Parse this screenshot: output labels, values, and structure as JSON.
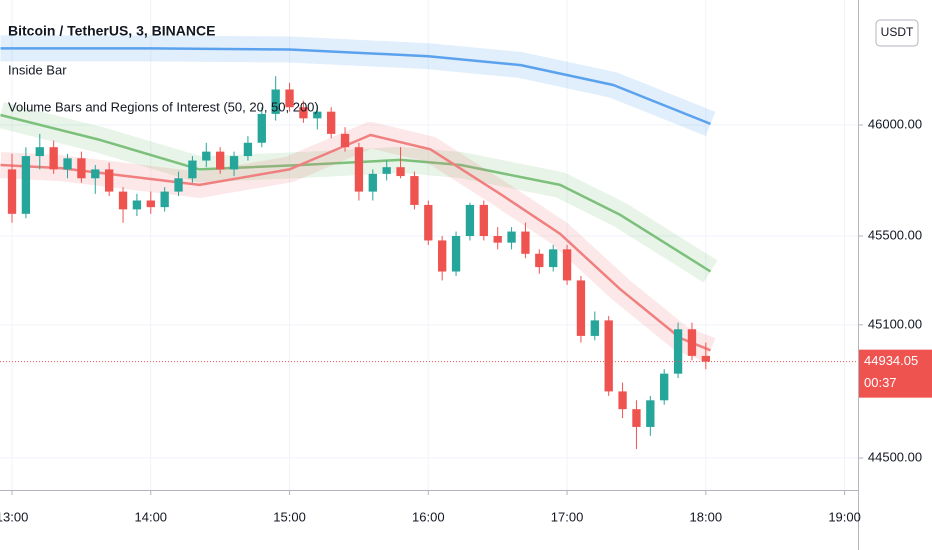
{
  "chart_data": {
    "type": "candlestick",
    "title": "Bitcoin / TetherUS, 3, BINANCE",
    "indicators": [
      "Inside Bar",
      "Volume Bars and Regions of Interest (50, 20, 50, 200)"
    ],
    "currency": "USDT",
    "up_color": "#26a69a",
    "down_color": "#ef5350",
    "grid": true,
    "xlim": [
      774.8,
      1145.8
    ],
    "ylim": [
      44356,
      46563
    ],
    "xticks": [
      {
        "value": 780,
        "label": "13:00"
      },
      {
        "value": 840,
        "label": "14:00"
      },
      {
        "value": 900,
        "label": "15:00"
      },
      {
        "value": 960,
        "label": "16:00"
      },
      {
        "value": 1020,
        "label": "17:00"
      },
      {
        "value": 1080,
        "label": "18:00"
      },
      {
        "value": 1140,
        "label": "19:00"
      }
    ],
    "yticks": [
      {
        "value": 44500,
        "label": "44500.00"
      },
      {
        "value": 45100,
        "label": "45100.00"
      },
      {
        "value": 45500,
        "label": "45500.00"
      },
      {
        "value": 46000,
        "label": "46000.00"
      }
    ],
    "x": [
      780,
      786,
      792,
      798,
      804,
      810,
      816,
      822,
      828,
      834,
      840,
      846,
      852,
      858,
      864,
      870,
      876,
      882,
      888,
      894,
      900,
      906,
      912,
      918,
      924,
      930,
      936,
      942,
      948,
      954,
      960,
      966,
      972,
      978,
      984,
      990,
      996,
      1002,
      1008,
      1014,
      1020,
      1026,
      1032,
      1038,
      1044,
      1050,
      1056,
      1062,
      1068,
      1074,
      1080
    ],
    "open": [
      45800,
      45600,
      45860,
      45900,
      45800,
      45850,
      45760,
      45800,
      45700,
      45620,
      45660,
      45630,
      45700,
      45760,
      45840,
      45880,
      45800,
      45860,
      45920,
      46050,
      46160,
      46080,
      46030,
      46060,
      45960,
      45900,
      45700,
      45780,
      45810,
      45770,
      45640,
      45480,
      45340,
      45500,
      45640,
      45500,
      45470,
      45520,
      45420,
      45360,
      45440,
      45300,
      45050,
      45120,
      44800,
      44720,
      44640,
      44760,
      44880,
      45080,
      44960
    ],
    "high": [
      45870,
      45900,
      45960,
      45930,
      45870,
      45880,
      45820,
      45830,
      45720,
      45690,
      45700,
      45720,
      45790,
      45860,
      45920,
      45900,
      45880,
      45950,
      46080,
      46220,
      46190,
      46110,
      46090,
      46080,
      45990,
      45920,
      45800,
      45840,
      45900,
      45790,
      45660,
      45500,
      45520,
      45650,
      45660,
      45540,
      45540,
      45560,
      45440,
      45460,
      45460,
      45320,
      45160,
      45140,
      44840,
      44760,
      44780,
      44900,
      45110,
      45110,
      45020
    ],
    "low": [
      45560,
      45580,
      45800,
      45780,
      45760,
      45740,
      45690,
      45680,
      45560,
      45590,
      45600,
      45610,
      45680,
      45740,
      45810,
      45780,
      45770,
      45840,
      45900,
      46020,
      46060,
      46010,
      45980,
      45940,
      45880,
      45660,
      45660,
      45750,
      45760,
      45620,
      45460,
      45300,
      45320,
      45480,
      45480,
      45440,
      45440,
      45400,
      45330,
      45340,
      45280,
      45020,
      45030,
      44780,
      44680,
      44540,
      44600,
      44740,
      44860,
      44940,
      44900
    ],
    "close": [
      45600,
      45860,
      45900,
      45800,
      45850,
      45760,
      45800,
      45700,
      45620,
      45660,
      45630,
      45700,
      45760,
      45840,
      45880,
      45800,
      45860,
      45920,
      46050,
      46160,
      46080,
      46030,
      46060,
      45960,
      45900,
      45700,
      45780,
      45810,
      45770,
      45640,
      45480,
      45340,
      45500,
      45640,
      45500,
      45470,
      45520,
      45420,
      45360,
      45440,
      45300,
      45050,
      45120,
      44800,
      44720,
      44640,
      44760,
      44880,
      45080,
      44960,
      44934.05
    ],
    "lines": [
      {
        "color": "#5aa2ee",
        "x": [
          775,
          840,
          900,
          960,
          1000,
          1040,
          1082
        ],
        "values": [
          46345,
          46345,
          46340,
          46310,
          46270,
          46180,
          46005
        ]
      },
      {
        "color": "#7cc07c",
        "x": [
          775,
          818,
          861,
          905,
          948,
          974,
          1017,
          1043,
          1082
        ],
        "values": [
          46045,
          45933,
          45800,
          45820,
          45843,
          45820,
          45730,
          45595,
          45340
        ]
      },
      {
        "color": "#f08080",
        "x": [
          775,
          801,
          861,
          900,
          935,
          961,
          991,
          1017,
          1043,
          1069,
          1082
        ],
        "values": [
          45820,
          45806,
          45730,
          45800,
          45955,
          45890,
          45690,
          45510,
          45260,
          45040,
          44985
        ]
      }
    ],
    "last_price": 44934.05,
    "countdown": "00:37"
  }
}
